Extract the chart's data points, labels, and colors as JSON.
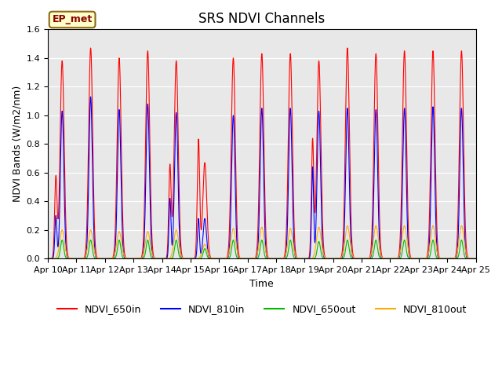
{
  "title": "SRS NDVI Channels",
  "xlabel": "Time",
  "ylabel": "NDVI Bands (W/m2/nm)",
  "ylim": [
    0,
    1.6
  ],
  "annotation": "EP_met",
  "colors": {
    "NDVI_650in": "#ff0000",
    "NDVI_810in": "#0000ff",
    "NDVI_650out": "#00bb00",
    "NDVI_810out": "#ffaa00"
  },
  "yticks": [
    0.0,
    0.2,
    0.4,
    0.6,
    0.8,
    1.0,
    1.2,
    1.4,
    1.6
  ],
  "xtick_labels": [
    "Apr 10",
    "Apr 11",
    "Apr 12",
    "Apr 13",
    "Apr 14",
    "Apr 15",
    "Apr 16",
    "Apr 17",
    "Apr 18",
    "Apr 19",
    "Apr 20",
    "Apr 21",
    "Apr 22",
    "Apr 23",
    "Apr 24",
    "Apr 25"
  ],
  "num_days": 15,
  "day_peaks_650in": [
    1.38,
    1.47,
    1.4,
    1.45,
    1.38,
    0.67,
    1.4,
    1.43,
    1.43,
    1.38,
    1.47,
    1.43,
    1.45,
    1.45,
    1.45
  ],
  "day_peaks_810in": [
    1.03,
    1.13,
    1.04,
    1.08,
    1.02,
    0.28,
    1.0,
    1.05,
    1.05,
    1.03,
    1.05,
    1.04,
    1.05,
    1.06,
    1.05
  ],
  "day_peaks_650out": [
    0.13,
    0.13,
    0.13,
    0.13,
    0.13,
    0.07,
    0.13,
    0.13,
    0.13,
    0.12,
    0.13,
    0.13,
    0.13,
    0.13,
    0.13
  ],
  "day_peaks_810out": [
    0.2,
    0.2,
    0.19,
    0.19,
    0.2,
    0.1,
    0.21,
    0.22,
    0.21,
    0.22,
    0.23,
    0.23,
    0.23,
    0.23,
    0.23
  ],
  "secondary_peaks_650in": [
    0.57,
    null,
    null,
    null,
    0.65,
    0.83,
    null,
    null,
    null,
    0.83,
    null,
    null,
    null,
    null,
    null
  ],
  "secondary_peaks_810in": [
    0.3,
    null,
    null,
    null,
    0.42,
    0.28,
    null,
    null,
    null,
    0.64,
    null,
    null,
    null,
    null,
    null
  ],
  "title_fontsize": 12,
  "label_fontsize": 9,
  "tick_fontsize": 8,
  "legend_fontsize": 9,
  "fig_bg": "#ffffff",
  "axes_bg": "#e8e8e8"
}
